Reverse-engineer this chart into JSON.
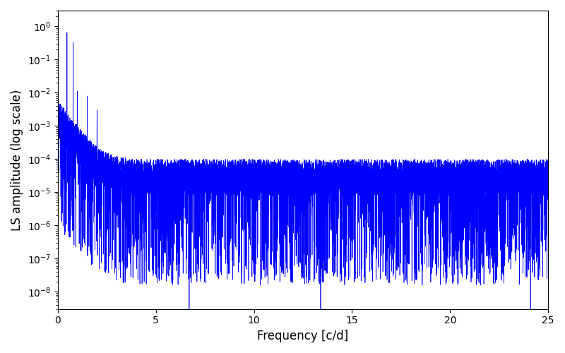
{
  "xlabel": "Frequency [c/d]",
  "ylabel": "LS amplitude (log scale)",
  "xlim": [
    0,
    25
  ],
  "line_color": "#0000ff",
  "line_width": 0.5,
  "freq_max": 25.0,
  "n_points": 10000,
  "seed": 7,
  "background_color": "#ffffff",
  "figsize": [
    8.0,
    5.0
  ],
  "dpi": 100,
  "ylim": [
    3e-09,
    3.0
  ]
}
